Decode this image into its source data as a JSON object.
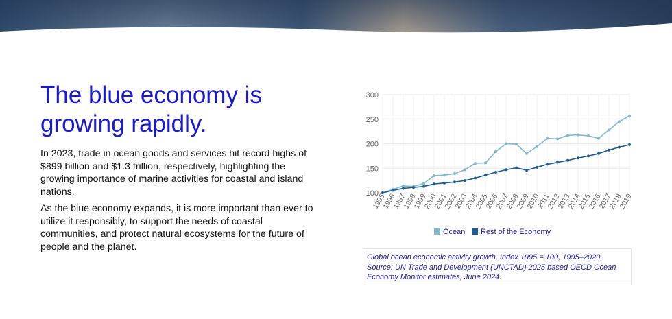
{
  "headline": "The blue economy is growing rapidly.",
  "paragraphs": [
    "In 2023, trade in ocean goods and services hit record highs of $899 billion and $1.3 trillion, respectively, highlighting the growing importance of marine activities for coastal and island nations.",
    "As the blue economy expands, it is more important than ever to utilize it responsibly, to support the needs of coastal communities, and protect natural ecosystems for the future of people and the planet."
  ],
  "caption": "Global ocean economic activity growth, Index 1995 = 100, 1995–2020, Source: UN Trade and Development (UNCTAD) 2025 based OECD Ocean Economy Monitor estimates, June 2024.",
  "colors": {
    "headline": "#1a1ad6",
    "ocean": "#7fb8cf",
    "rest": "#1b5c97",
    "caption": "#1a1aa6"
  },
  "chart_data": {
    "type": "line",
    "title": "",
    "xlabel": "",
    "ylabel": "",
    "categories": [
      "1995",
      "1996",
      "1997",
      "1998",
      "1999",
      "2000",
      "2001",
      "2002",
      "2003",
      "2004",
      "2005",
      "2006",
      "2007",
      "2008",
      "2009",
      "2010",
      "2011",
      "2012",
      "2013",
      "2014",
      "2015",
      "2016",
      "2017",
      "2018",
      "2019"
    ],
    "series": [
      {
        "name": "Ocean",
        "color": "#7fb8cf",
        "values": [
          100,
          107,
          114,
          113,
          119,
          135,
          136,
          139,
          147,
          160,
          161,
          184,
          200,
          199,
          180,
          194,
          211,
          210,
          217,
          218,
          216,
          211,
          228,
          245,
          257
        ]
      },
      {
        "name": "Rest of the Economy",
        "color": "#1b5c97",
        "values": [
          100,
          105,
          109,
          111,
          113,
          118,
          120,
          122,
          125,
          130,
          136,
          142,
          147,
          151,
          146,
          152,
          158,
          162,
          166,
          171,
          175,
          180,
          187,
          193,
          198
        ]
      }
    ],
    "ylim": [
      100,
      300
    ],
    "yticks": [
      "100",
      "150",
      "200",
      "250",
      "300"
    ],
    "grid": true,
    "legend": "bottom"
  }
}
